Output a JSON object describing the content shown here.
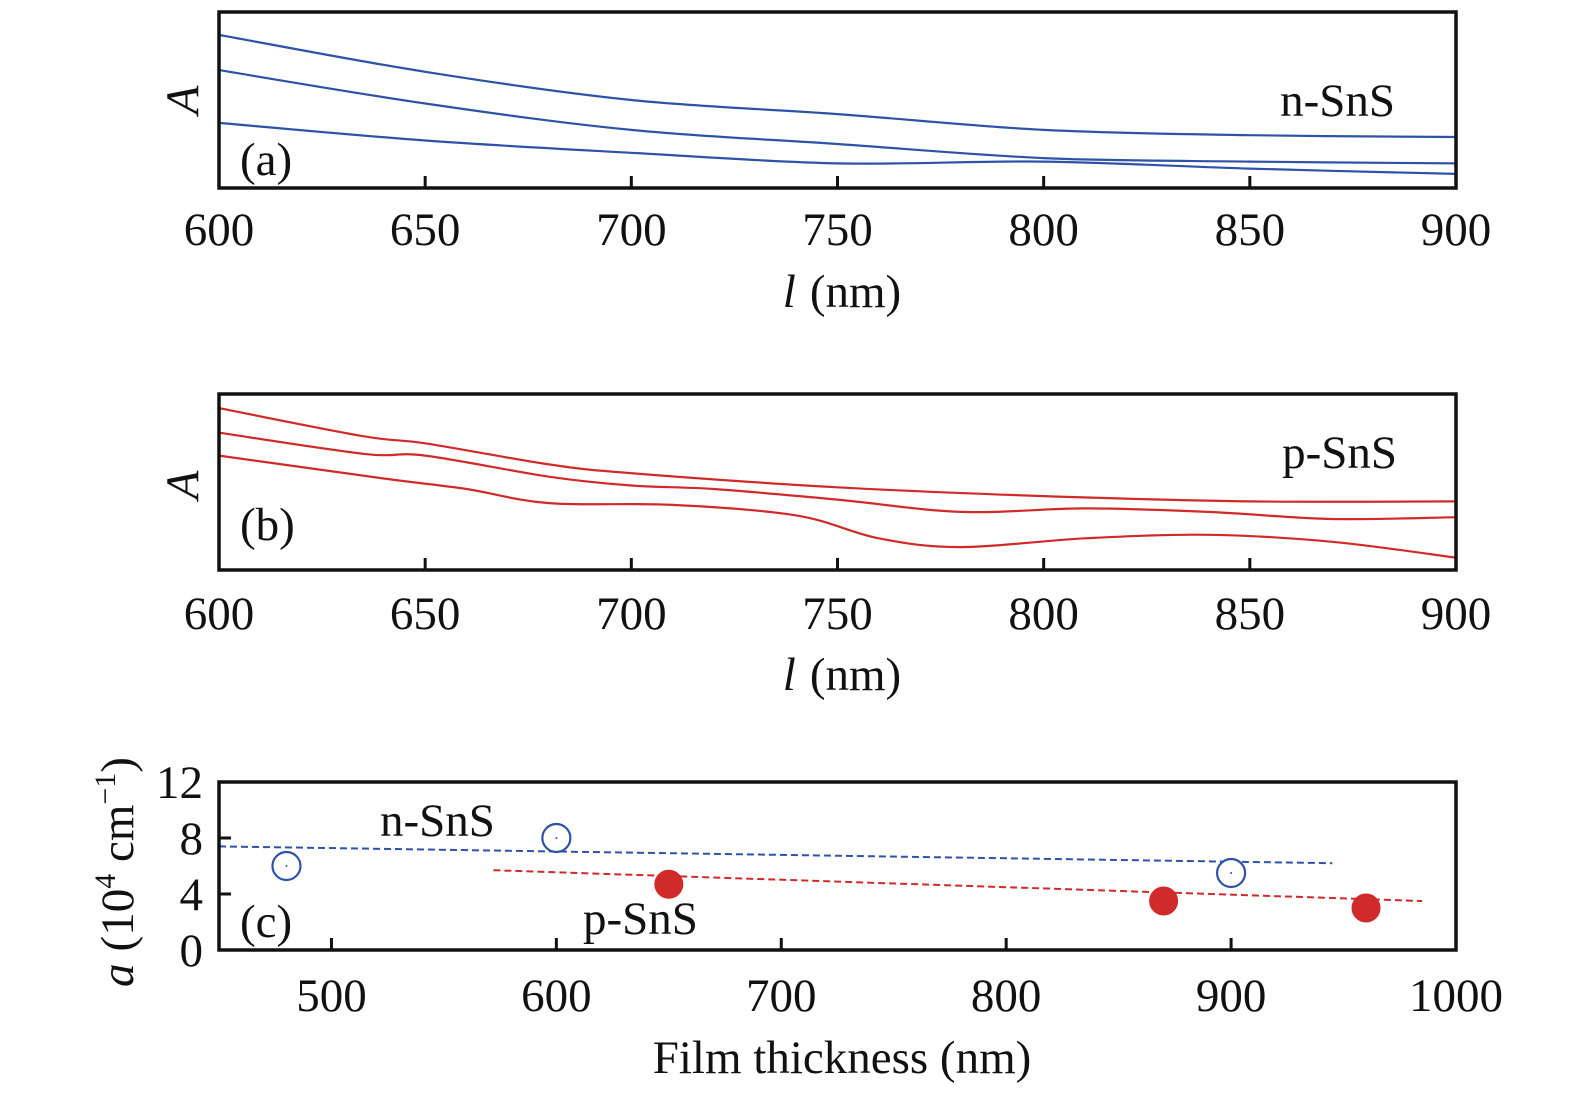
{
  "chart_data": [
    {
      "panel": "(a)",
      "type": "line",
      "xlabel_symbol": "l",
      "xlabel_unit": "(nm)",
      "ylabel": "A",
      "xlim": [
        600,
        900
      ],
      "xticks": [
        600,
        650,
        700,
        750,
        800,
        850,
        900
      ],
      "y_tick_labels": false,
      "series_label": "n-SnS",
      "color": "#2f52a8",
      "series": [
        {
          "x": [
            600,
            650,
            700,
            750,
            800,
            850,
            900
          ],
          "y": [
            0.87,
            0.66,
            0.5,
            0.42,
            0.33,
            0.3,
            0.29
          ]
        },
        {
          "x": [
            600,
            650,
            700,
            750,
            800,
            850,
            900
          ],
          "y": [
            0.67,
            0.48,
            0.33,
            0.25,
            0.17,
            0.15,
            0.14
          ]
        },
        {
          "x": [
            600,
            650,
            700,
            750,
            800,
            850,
            900
          ],
          "y": [
            0.37,
            0.27,
            0.2,
            0.14,
            0.15,
            0.11,
            0.08
          ]
        }
      ]
    },
    {
      "panel": "(b)",
      "type": "line",
      "xlabel_symbol": "l",
      "xlabel_unit": "(nm)",
      "ylabel": "A",
      "xlim": [
        600,
        900
      ],
      "xticks": [
        600,
        650,
        700,
        750,
        800,
        850,
        900
      ],
      "y_tick_labels": false,
      "series_label": "p-SnS",
      "color": "#d12a2a",
      "series": [
        {
          "x": [
            600,
            635,
            650,
            680,
            700,
            750,
            800,
            850,
            900
          ],
          "y": [
            0.92,
            0.76,
            0.72,
            0.6,
            0.55,
            0.47,
            0.42,
            0.39,
            0.39
          ]
        },
        {
          "x": [
            600,
            635,
            650,
            680,
            700,
            720,
            750,
            780,
            810,
            840,
            870,
            900
          ],
          "y": [
            0.78,
            0.66,
            0.65,
            0.53,
            0.48,
            0.46,
            0.4,
            0.33,
            0.35,
            0.33,
            0.29,
            0.3
          ]
        },
        {
          "x": [
            600,
            640,
            660,
            680,
            710,
            740,
            760,
            780,
            810,
            840,
            870,
            900
          ],
          "y": [
            0.65,
            0.52,
            0.46,
            0.38,
            0.37,
            0.31,
            0.18,
            0.13,
            0.18,
            0.2,
            0.16,
            0.07
          ]
        }
      ]
    },
    {
      "panel": "(c)",
      "type": "scatter",
      "xlabel": "Film thickness (nm)",
      "ylabel_symbol": "a",
      "ylabel_unit": "(10",
      "ylabel_exp": "4",
      "ylabel_unit2": " cm",
      "ylabel_exp2": "−1",
      "ylabel_close": ")",
      "xlim": [
        450,
        1000
      ],
      "ylim": [
        0,
        12
      ],
      "xticks": [
        500,
        600,
        700,
        800,
        900,
        1000
      ],
      "yticks": [
        0,
        4,
        8,
        12
      ],
      "series": [
        {
          "name": "n-SnS",
          "marker": "open-circle",
          "color": "#2f52a8",
          "x": [
            480,
            600,
            900
          ],
          "y": [
            6.0,
            8.0,
            5.5
          ],
          "fit": {
            "x": [
              450,
              945
            ],
            "y": [
              7.4,
              6.2
            ]
          }
        },
        {
          "name": "p-SnS",
          "marker": "filled-circle",
          "color": "#d12a2a",
          "x": [
            650,
            870,
            960
          ],
          "y": [
            4.7,
            3.5,
            3.0
          ],
          "fit": {
            "x": [
              572,
              985
            ],
            "y": [
              5.7,
              3.5
            ]
          }
        }
      ]
    }
  ]
}
